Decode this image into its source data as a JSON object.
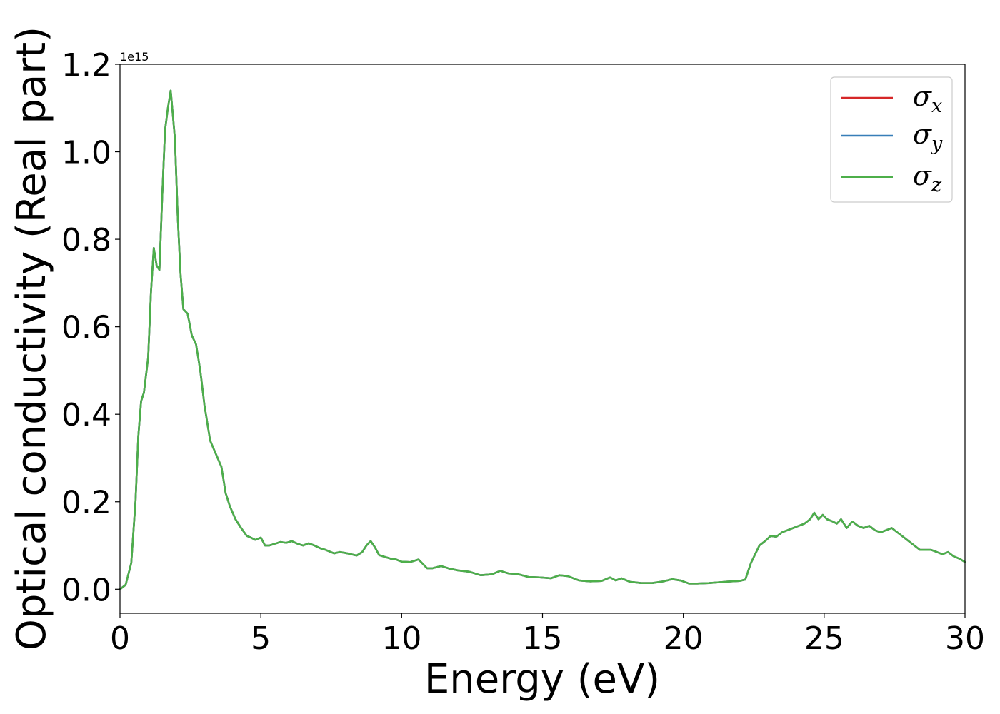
{
  "chart_data": {
    "type": "line",
    "xlabel": "Energy (eV)",
    "ylabel": "Optical conductivity (Real part)",
    "y_offset_label": "1e15",
    "xlim": [
      0,
      30
    ],
    "ylim": [
      -0.055,
      1.2
    ],
    "y_scale_factor": 1000000000000000.0,
    "x_ticks": [
      0,
      5,
      10,
      15,
      20,
      25,
      30
    ],
    "x_tick_labels": [
      "0",
      "5",
      "10",
      "15",
      "20",
      "25",
      "30"
    ],
    "y_ticks": [
      0.0,
      0.2,
      0.4,
      0.6,
      0.8,
      1.0,
      1.2
    ],
    "y_tick_labels": [
      "0.0",
      "0.2",
      "0.4",
      "0.6",
      "0.8",
      "1.0",
      "1.2"
    ],
    "grid": false,
    "legend_position": "top-right",
    "x": [
      0,
      0.2,
      0.4,
      0.55,
      0.65,
      0.75,
      0.85,
      1.0,
      1.1,
      1.2,
      1.3,
      1.4,
      1.5,
      1.6,
      1.7,
      1.8,
      1.95,
      2.05,
      2.15,
      2.25,
      2.4,
      2.55,
      2.7,
      2.85,
      3.0,
      3.2,
      3.4,
      3.6,
      3.75,
      3.9,
      4.1,
      4.3,
      4.5,
      4.65,
      4.8,
      5.0,
      5.15,
      5.3,
      5.5,
      5.7,
      5.9,
      6.1,
      6.3,
      6.5,
      6.7,
      6.9,
      7.1,
      7.3,
      7.6,
      7.8,
      8.0,
      8.2,
      8.4,
      8.6,
      8.75,
      8.9,
      9.05,
      9.2,
      9.4,
      9.6,
      9.8,
      10.0,
      10.3,
      10.6,
      10.9,
      11.1,
      11.4,
      11.7,
      12.0,
      12.4,
      12.8,
      13.2,
      13.5,
      13.8,
      14.1,
      14.5,
      14.9,
      15.3,
      15.6,
      15.9,
      16.3,
      16.7,
      17.1,
      17.4,
      17.6,
      17.8,
      18.1,
      18.5,
      18.9,
      19.3,
      19.6,
      19.9,
      20.2,
      20.5,
      20.9,
      21.3,
      21.7,
      22.0,
      22.2,
      22.4,
      22.7,
      22.9,
      23.1,
      23.3,
      23.5,
      23.7,
      23.9,
      24.1,
      24.3,
      24.5,
      24.65,
      24.8,
      24.95,
      25.1,
      25.3,
      25.45,
      25.6,
      25.8,
      26.0,
      26.2,
      26.4,
      26.6,
      26.8,
      27.0,
      27.2,
      27.4,
      27.6,
      27.8,
      28.0,
      28.2,
      28.4,
      28.6,
      28.8,
      29.0,
      29.2,
      29.4,
      29.6,
      29.8,
      30.0
    ],
    "series": [
      {
        "name": "σx",
        "label_base": "σ",
        "label_sub": "x",
        "color": "#d62728",
        "values": [
          0.0,
          0.01,
          0.06,
          0.2,
          0.35,
          0.43,
          0.45,
          0.53,
          0.68,
          0.78,
          0.74,
          0.73,
          0.9,
          1.05,
          1.1,
          1.14,
          1.03,
          0.85,
          0.72,
          0.64,
          0.63,
          0.58,
          0.56,
          0.5,
          0.42,
          0.34,
          0.31,
          0.28,
          0.22,
          0.19,
          0.16,
          0.14,
          0.122,
          0.118,
          0.113,
          0.118,
          0.1,
          0.1,
          0.104,
          0.108,
          0.106,
          0.11,
          0.104,
          0.1,
          0.105,
          0.1,
          0.094,
          0.09,
          0.082,
          0.085,
          0.083,
          0.08,
          0.077,
          0.085,
          0.1,
          0.11,
          0.096,
          0.078,
          0.074,
          0.07,
          0.068,
          0.063,
          0.062,
          0.068,
          0.048,
          0.048,
          0.053,
          0.047,
          0.043,
          0.04,
          0.032,
          0.034,
          0.042,
          0.036,
          0.035,
          0.028,
          0.027,
          0.025,
          0.032,
          0.03,
          0.02,
          0.018,
          0.019,
          0.027,
          0.02,
          0.025,
          0.017,
          0.014,
          0.014,
          0.018,
          0.023,
          0.02,
          0.013,
          0.013,
          0.014,
          0.016,
          0.018,
          0.019,
          0.022,
          0.06,
          0.1,
          0.11,
          0.122,
          0.12,
          0.13,
          0.135,
          0.14,
          0.145,
          0.15,
          0.16,
          0.175,
          0.16,
          0.17,
          0.16,
          0.155,
          0.15,
          0.16,
          0.14,
          0.155,
          0.145,
          0.14,
          0.145,
          0.135,
          0.13,
          0.135,
          0.14,
          0.13,
          0.12,
          0.11,
          0.1,
          0.09,
          0.09,
          0.09,
          0.085,
          0.08,
          0.085,
          0.075,
          0.07,
          0.062
        ]
      },
      {
        "name": "σy",
        "label_base": "σ",
        "label_sub": "y",
        "color": "#377eb8",
        "values": [
          0.0,
          0.01,
          0.06,
          0.2,
          0.35,
          0.43,
          0.45,
          0.53,
          0.68,
          0.78,
          0.74,
          0.73,
          0.9,
          1.05,
          1.1,
          1.14,
          1.03,
          0.85,
          0.72,
          0.64,
          0.63,
          0.58,
          0.56,
          0.5,
          0.42,
          0.34,
          0.31,
          0.28,
          0.22,
          0.19,
          0.16,
          0.14,
          0.122,
          0.118,
          0.113,
          0.118,
          0.1,
          0.1,
          0.104,
          0.108,
          0.106,
          0.11,
          0.104,
          0.1,
          0.105,
          0.1,
          0.094,
          0.09,
          0.082,
          0.085,
          0.083,
          0.08,
          0.077,
          0.085,
          0.1,
          0.11,
          0.096,
          0.078,
          0.074,
          0.07,
          0.068,
          0.063,
          0.062,
          0.068,
          0.048,
          0.048,
          0.053,
          0.047,
          0.043,
          0.04,
          0.032,
          0.034,
          0.042,
          0.036,
          0.035,
          0.028,
          0.027,
          0.025,
          0.032,
          0.03,
          0.02,
          0.018,
          0.019,
          0.027,
          0.02,
          0.025,
          0.017,
          0.014,
          0.014,
          0.018,
          0.023,
          0.02,
          0.013,
          0.013,
          0.014,
          0.016,
          0.018,
          0.019,
          0.022,
          0.06,
          0.1,
          0.11,
          0.122,
          0.12,
          0.13,
          0.135,
          0.14,
          0.145,
          0.15,
          0.16,
          0.175,
          0.16,
          0.17,
          0.16,
          0.155,
          0.15,
          0.16,
          0.14,
          0.155,
          0.145,
          0.14,
          0.145,
          0.135,
          0.13,
          0.135,
          0.14,
          0.13,
          0.12,
          0.11,
          0.1,
          0.09,
          0.09,
          0.09,
          0.085,
          0.08,
          0.085,
          0.075,
          0.07,
          0.062
        ]
      },
      {
        "name": "σz",
        "label_base": "σ",
        "label_sub": "z",
        "color": "#4daf4a",
        "values": [
          0.0,
          0.01,
          0.06,
          0.2,
          0.35,
          0.43,
          0.45,
          0.53,
          0.68,
          0.78,
          0.74,
          0.73,
          0.9,
          1.05,
          1.1,
          1.14,
          1.03,
          0.85,
          0.72,
          0.64,
          0.63,
          0.58,
          0.56,
          0.5,
          0.42,
          0.34,
          0.31,
          0.28,
          0.22,
          0.19,
          0.16,
          0.14,
          0.122,
          0.118,
          0.113,
          0.118,
          0.1,
          0.1,
          0.104,
          0.108,
          0.106,
          0.11,
          0.104,
          0.1,
          0.105,
          0.1,
          0.094,
          0.09,
          0.082,
          0.085,
          0.083,
          0.08,
          0.077,
          0.085,
          0.1,
          0.11,
          0.096,
          0.078,
          0.074,
          0.07,
          0.068,
          0.063,
          0.062,
          0.068,
          0.048,
          0.048,
          0.053,
          0.047,
          0.043,
          0.04,
          0.032,
          0.034,
          0.042,
          0.036,
          0.035,
          0.028,
          0.027,
          0.025,
          0.032,
          0.03,
          0.02,
          0.018,
          0.019,
          0.027,
          0.02,
          0.025,
          0.017,
          0.014,
          0.014,
          0.018,
          0.023,
          0.02,
          0.013,
          0.013,
          0.014,
          0.016,
          0.018,
          0.019,
          0.022,
          0.06,
          0.1,
          0.11,
          0.122,
          0.12,
          0.13,
          0.135,
          0.14,
          0.145,
          0.15,
          0.16,
          0.175,
          0.16,
          0.17,
          0.16,
          0.155,
          0.15,
          0.16,
          0.14,
          0.155,
          0.145,
          0.14,
          0.145,
          0.135,
          0.13,
          0.135,
          0.14,
          0.13,
          0.12,
          0.11,
          0.1,
          0.09,
          0.09,
          0.09,
          0.085,
          0.08,
          0.085,
          0.075,
          0.07,
          0.062
        ]
      }
    ]
  }
}
